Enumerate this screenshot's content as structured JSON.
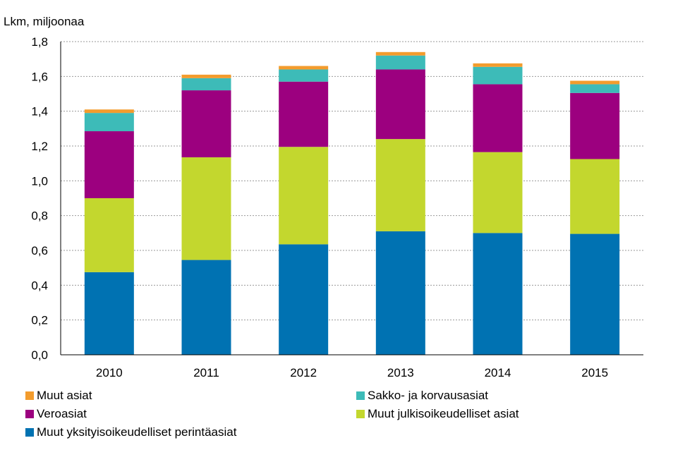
{
  "chart_data": {
    "type": "bar",
    "stacked": true,
    "title": "",
    "xlabel": "",
    "ylabel": "Lkm, miljoonaa",
    "ylim": [
      0,
      1.8
    ],
    "ytick_values": [
      0,
      0.2,
      0.4,
      0.6,
      0.8,
      1.0,
      1.2,
      1.4,
      1.6,
      1.8
    ],
    "yticks": [
      "0,0",
      "0,2",
      "0,4",
      "0,6",
      "0,8",
      "1,0",
      "1,2",
      "1,4",
      "1,6",
      "1,8"
    ],
    "grid": true,
    "legend_position": "bottom",
    "categories": [
      "2010",
      "2011",
      "2012",
      "2013",
      "2014",
      "2015"
    ],
    "series": [
      {
        "name": "Muut yksityisoikeudelliset perintäasiat",
        "color": "#0072B2",
        "values": [
          0.475,
          0.545,
          0.635,
          0.71,
          0.7,
          0.695
        ]
      },
      {
        "name": "Muut julkisoikeudelliset asiat",
        "color": "#C3D72E",
        "values": [
          0.425,
          0.59,
          0.56,
          0.53,
          0.465,
          0.43
        ]
      },
      {
        "name": "Veroasiat",
        "color": "#9C007F",
        "values": [
          0.385,
          0.385,
          0.375,
          0.4,
          0.39,
          0.38
        ]
      },
      {
        "name": "Sakko- ja korvausasiat",
        "color": "#3DBBB8",
        "values": [
          0.105,
          0.07,
          0.07,
          0.08,
          0.1,
          0.05
        ]
      },
      {
        "name": "Muut asiat",
        "color": "#F39C2D",
        "values": [
          0.02,
          0.02,
          0.02,
          0.02,
          0.02,
          0.02
        ]
      }
    ],
    "legend_order": [
      "Muut asiat",
      "Sakko- ja korvausasiat",
      "Veroasiat",
      "Muut julkisoikeudelliset asiat",
      "Muut yksityisoikeudelliset perintäasiat"
    ]
  }
}
